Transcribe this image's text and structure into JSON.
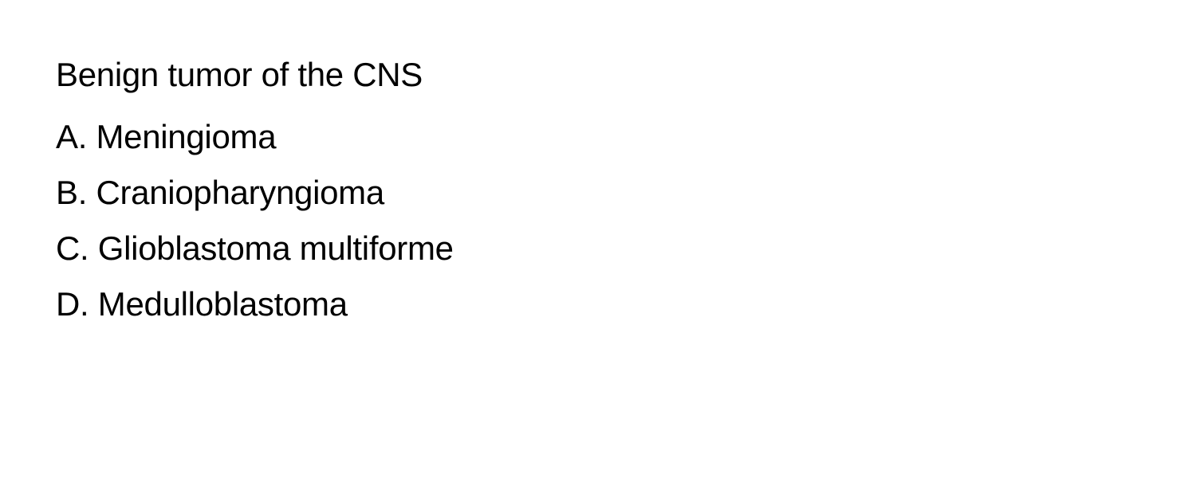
{
  "question": "Benign tumor of the CNS",
  "options": [
    {
      "letter": "A.",
      "text": "Meningioma"
    },
    {
      "letter": "B.",
      "text": "Craniopharyngioma"
    },
    {
      "letter": "C.",
      "text": "Glioblastoma multiforme"
    },
    {
      "letter": "D.",
      "text": "Medulloblastoma"
    }
  ],
  "text_color": "#000000",
  "background_color": "#ffffff",
  "question_fontsize": 42,
  "option_fontsize": 42,
  "font_weight": 400
}
